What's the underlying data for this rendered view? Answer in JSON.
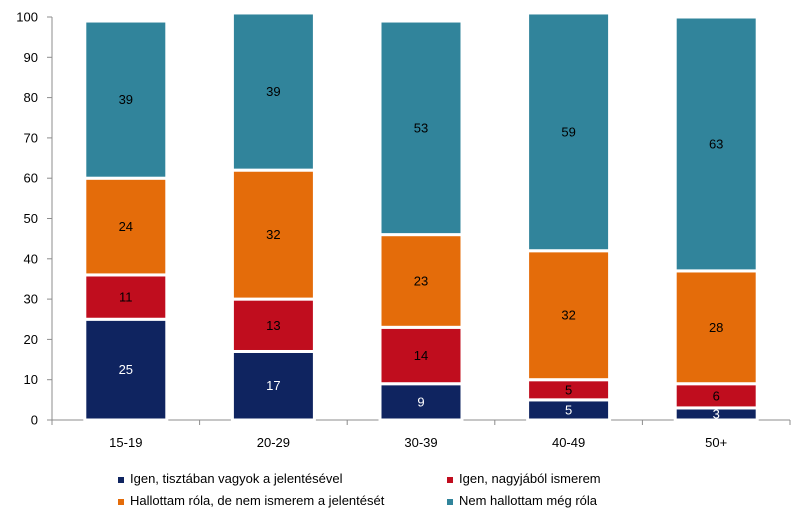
{
  "chart_data": {
    "type": "bar",
    "stacked": true,
    "categories": [
      "15-19",
      "20-29",
      "30-39",
      "40-49",
      "50+"
    ],
    "series": [
      {
        "name": "Igen, tisztában vagyok a jelentésével",
        "color": "#0f2460",
        "values": [
          25,
          17,
          9,
          5,
          3
        ]
      },
      {
        "name": "Igen, nagyjából ismerem",
        "color": "#c00d1e",
        "values": [
          11,
          13,
          14,
          5,
          6
        ]
      },
      {
        "name": "Hallottam róla, de nem ismerem a jelentését",
        "color": "#e46c0a",
        "values": [
          24,
          32,
          23,
          32,
          28
        ]
      },
      {
        "name": "Nem hallottam még róla",
        "color": "#31849b",
        "values": [
          39,
          39,
          53,
          59,
          63
        ]
      }
    ],
    "ylim": [
      0,
      100
    ],
    "yticks": [
      0,
      10,
      20,
      30,
      40,
      50,
      60,
      70,
      80,
      90,
      100
    ],
    "grid": false,
    "legend_position": "bottom"
  }
}
